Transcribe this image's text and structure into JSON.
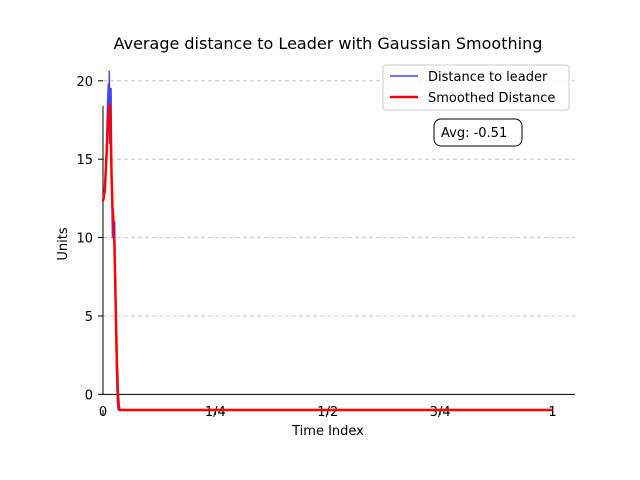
{
  "chart_data": {
    "type": "line",
    "title": "Average distance to Leader with Gaussian Smoothing",
    "xlabel": "Time Index",
    "ylabel": "Units",
    "xlim": [
      0,
      1.05
    ],
    "ylim": [
      -1,
      21.2
    ],
    "x_ticks": [
      {
        "value": 0,
        "label": "0"
      },
      {
        "value": 0.25,
        "label": "1/4"
      },
      {
        "value": 0.5,
        "label": "1/2"
      },
      {
        "value": 0.75,
        "label": "3/4"
      },
      {
        "value": 1,
        "label": "1"
      }
    ],
    "y_ticks": [
      {
        "value": 0,
        "label": "0"
      },
      {
        "value": 5,
        "label": "5"
      },
      {
        "value": 10,
        "label": "10"
      },
      {
        "value": 15,
        "label": "15"
      },
      {
        "value": 20,
        "label": "20"
      }
    ],
    "grid": "horizontal dashed",
    "legend_position": "top-right",
    "annotation": "Avg: -0.51",
    "series": [
      {
        "name": "Distance to leader",
        "color": "#4444ee",
        "x": [
          0,
          0.004,
          0.008,
          0.01,
          0.012,
          0.013,
          0.014,
          0.015,
          0.016,
          0.017,
          0.018,
          0.019,
          0.02,
          0.021,
          0.022,
          0.023,
          0.024,
          0.025,
          0.026,
          0.027,
          0.028,
          0.03,
          0.032,
          0.034,
          0.036,
          0.038,
          1.0
        ],
        "y": [
          12.3,
          13.0,
          16.0,
          18.5,
          19.8,
          17.0,
          20.6,
          16.0,
          19.5,
          17.5,
          19.5,
          14.0,
          11.8,
          10.0,
          11.5,
          10.5,
          11.0,
          9.5,
          11.0,
          8.0,
          5.0,
          1.5,
          -0.5,
          -1.0,
          -1.0,
          -1.0,
          -1.0
        ]
      },
      {
        "name": "Smoothed Distance",
        "color": "#ff0000",
        "x": [
          0,
          0.004,
          0.008,
          0.012,
          0.015,
          0.017,
          0.019,
          0.021,
          0.023,
          0.025,
          0.027,
          0.029,
          0.031,
          0.033,
          0.035,
          0.037,
          0.04,
          1.0
        ],
        "y": [
          12.3,
          13.0,
          15.3,
          17.8,
          18.5,
          17.2,
          14.0,
          12.0,
          11.2,
          10.0,
          7.5,
          4.5,
          2.0,
          0.2,
          -0.7,
          -1.0,
          -1.0,
          -1.0
        ]
      }
    ]
  }
}
